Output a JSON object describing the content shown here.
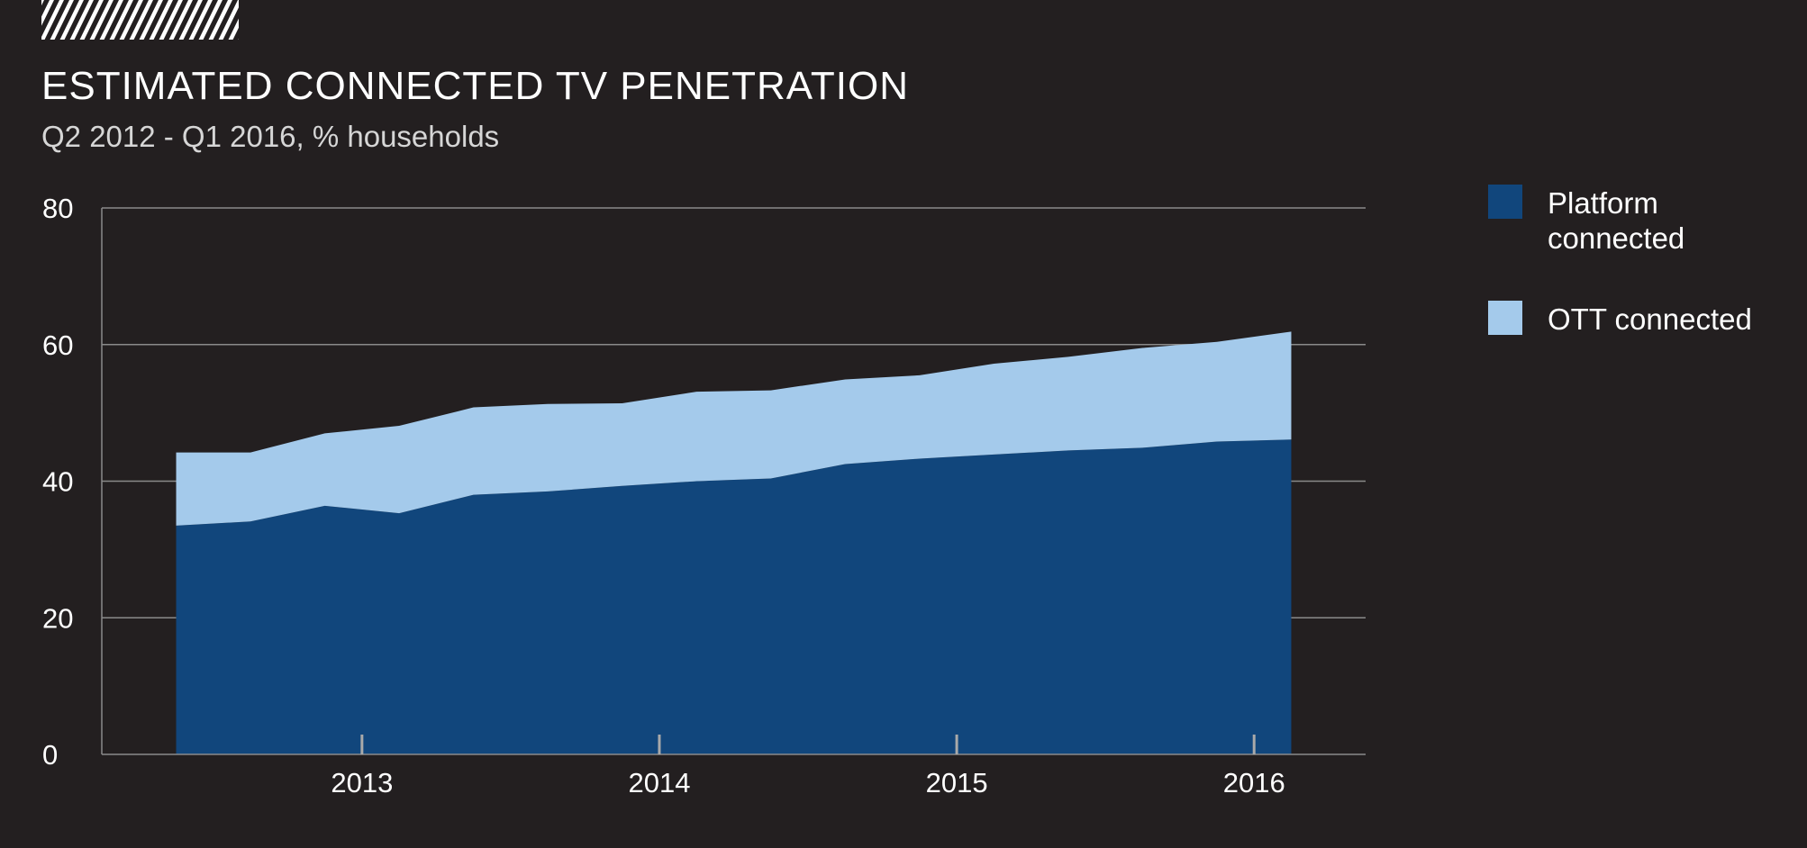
{
  "chart_data": {
    "type": "area",
    "stacked": true,
    "title": "ESTIMATED CONNECTED TV PENETRATION",
    "subtitle": "Q2 2012 - Q1 2016, % households",
    "xlabel": "",
    "ylabel": "",
    "x_tick_labels": [
      "2013",
      "2014",
      "2015",
      "2016"
    ],
    "x_tick_values": [
      2013,
      2014,
      2015,
      2016
    ],
    "xlim": [
      2012.125,
      2016.375
    ],
    "ylim": [
      0,
      80
    ],
    "y_ticks": [
      0,
      20,
      40,
      60,
      80
    ],
    "grid": true,
    "legend_position": "right",
    "x": [
      2012.375,
      2012.625,
      2012.875,
      2013.125,
      2013.375,
      2013.625,
      2013.875,
      2014.125,
      2014.375,
      2014.625,
      2014.875,
      2015.125,
      2015.375,
      2015.625,
      2015.875,
      2016.125
    ],
    "series": [
      {
        "name": "Platform connected",
        "color": "#11467c",
        "values": [
          33.5,
          34.1,
          36.4,
          35.3,
          38.0,
          38.5,
          39.3,
          40.0,
          40.4,
          42.5,
          43.3,
          43.9,
          44.5,
          44.9,
          45.8,
          46.1
        ]
      },
      {
        "name": "OTT connected",
        "color": "#a4caeb",
        "values": [
          10.7,
          10.1,
          10.6,
          12.8,
          12.8,
          12.8,
          12.1,
          13.1,
          12.9,
          12.4,
          12.2,
          13.3,
          13.7,
          14.6,
          14.6,
          15.8
        ]
      }
    ],
    "legend": [
      "Platform connected",
      "OTT connected"
    ]
  },
  "decoration": {
    "stripe_color": "#ffffff",
    "background": "#231f20",
    "grid_color": "#8a8a8a",
    "tick_mark_color": "#a9a9a9"
  }
}
